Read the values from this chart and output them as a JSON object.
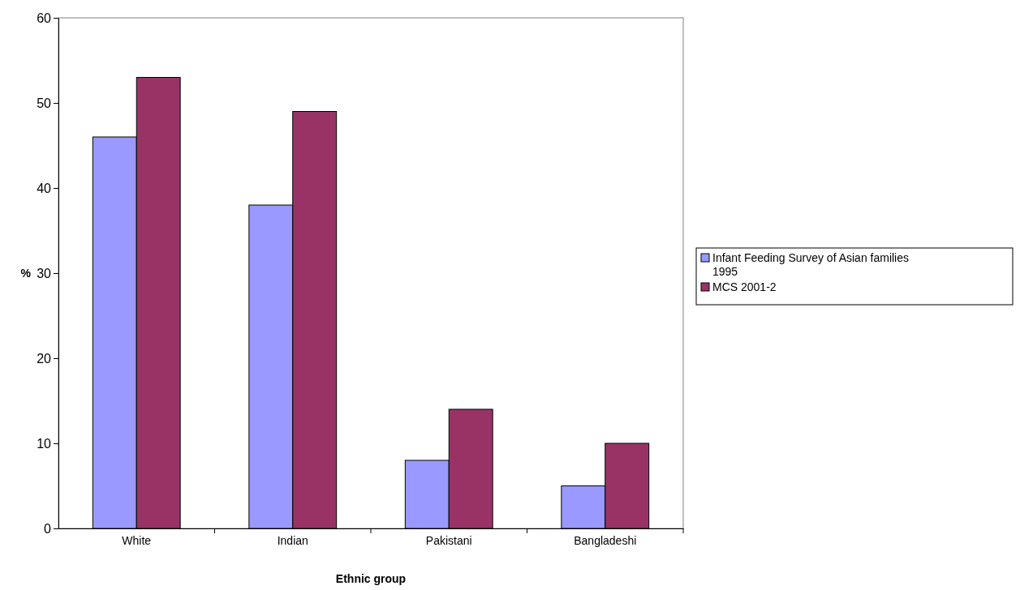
{
  "chart_data": {
    "type": "bar",
    "xlabel": "Ethnic group",
    "ylabel": "%",
    "categories": [
      "White",
      "Indian",
      "Pakistani",
      "Bangladeshi"
    ],
    "series": [
      {
        "name": "Infant Feeding Survey of Asian families 1995",
        "color": "#9999ff",
        "values": [
          46,
          38,
          8,
          5
        ]
      },
      {
        "name": "MCS 2001-2",
        "color": "#993366",
        "values": [
          53,
          49,
          14,
          10
        ]
      }
    ],
    "ylim": [
      0,
      60
    ],
    "yticks": [
      0,
      10,
      20,
      30,
      40,
      50,
      60
    ],
    "grid": false,
    "legend": "right"
  }
}
